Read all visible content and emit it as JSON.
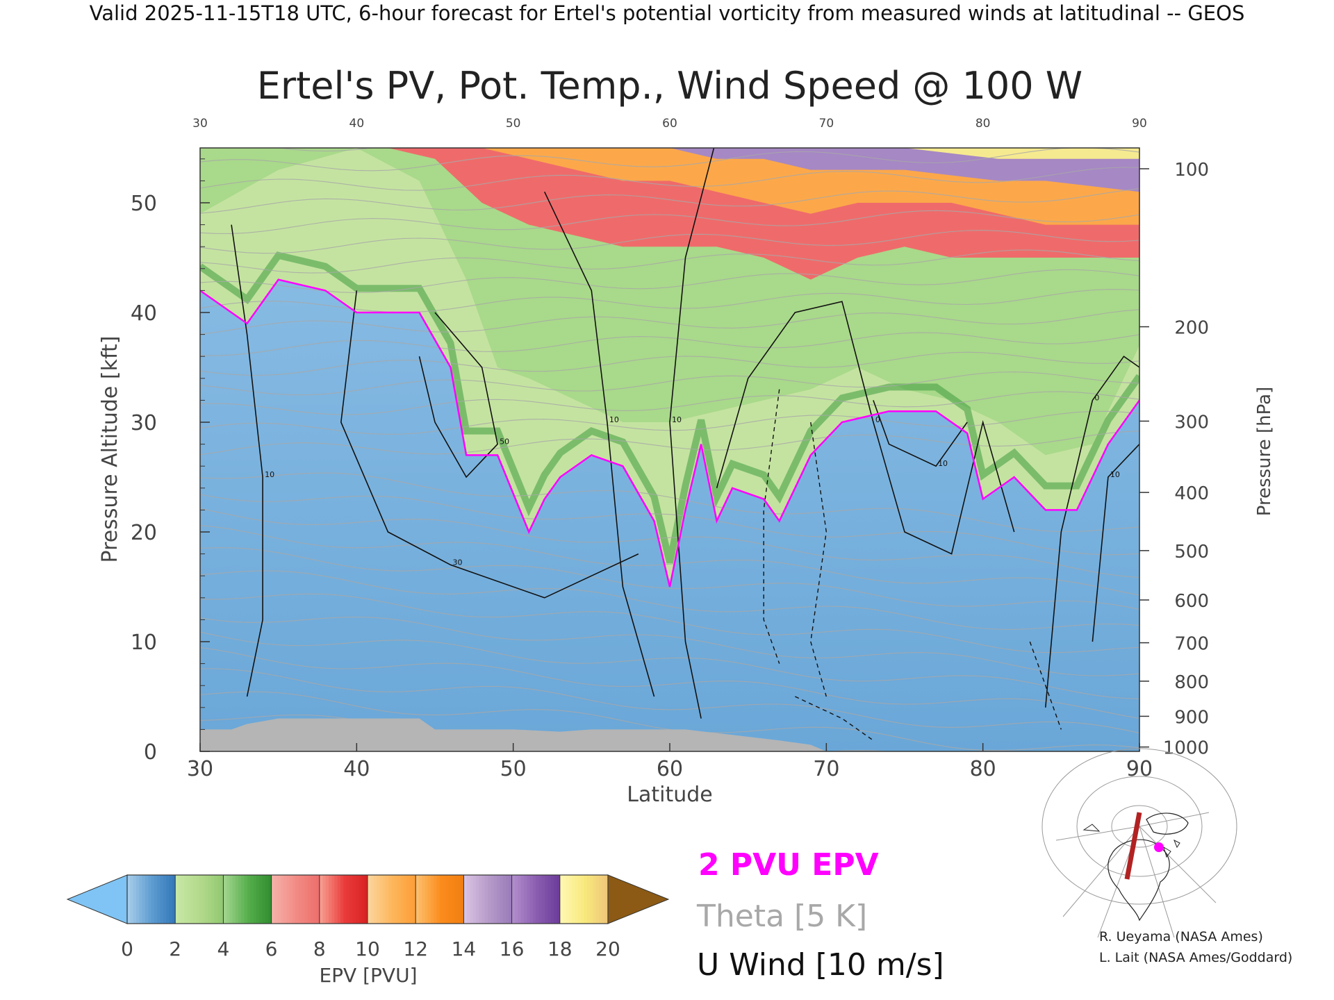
{
  "header": {
    "valid_line": "Valid 2025-11-15T18 UTC, 6-hour forecast for Ertel's potential vorticity from measured winds at latitudinal -- GEOS"
  },
  "chart_data": {
    "type": "heatmap",
    "title": "Ertel's PV, Pot. Temp., Wind Speed @ 100 W",
    "xlabel": "Latitude",
    "ylabel": "Pressure Altitude [kft]",
    "y2label": "Pressure [hPa]",
    "xlim": [
      30,
      90
    ],
    "ylim": [
      0,
      55
    ],
    "x_ticks": [
      30,
      40,
      50,
      60,
      70,
      80,
      90
    ],
    "y_ticks": [
      0,
      10,
      20,
      30,
      40,
      50
    ],
    "pressure_ticks": [
      {
        "hpa": 100,
        "kft": 53.1
      },
      {
        "hpa": 200,
        "kft": 38.7
      },
      {
        "hpa": 300,
        "kft": 30.1
      },
      {
        "hpa": 400,
        "kft": 23.6
      },
      {
        "hpa": 500,
        "kft": 18.3
      },
      {
        "hpa": 600,
        "kft": 13.8
      },
      {
        "hpa": 700,
        "kft": 9.9
      },
      {
        "hpa": 800,
        "kft": 6.4
      },
      {
        "hpa": 900,
        "kft": 3.2
      },
      {
        "hpa": 1000,
        "kft": 0.4
      }
    ],
    "pressure_tick_labels": [
      "100",
      "200",
      "300",
      "400",
      "500",
      "600",
      "700",
      "800",
      "900",
      "1000"
    ],
    "dynamic_tropopause_2pvu_kft": [
      {
        "lat": 30,
        "kft": 42
      },
      {
        "lat": 33,
        "kft": 39
      },
      {
        "lat": 35,
        "kft": 43
      },
      {
        "lat": 38,
        "kft": 42
      },
      {
        "lat": 40,
        "kft": 40
      },
      {
        "lat": 42,
        "kft": 40
      },
      {
        "lat": 44,
        "kft": 40
      },
      {
        "lat": 46,
        "kft": 35
      },
      {
        "lat": 47,
        "kft": 27
      },
      {
        "lat": 49,
        "kft": 27
      },
      {
        "lat": 51,
        "kft": 20
      },
      {
        "lat": 52,
        "kft": 23
      },
      {
        "lat": 53,
        "kft": 25
      },
      {
        "lat": 55,
        "kft": 27
      },
      {
        "lat": 57,
        "kft": 26
      },
      {
        "lat": 59,
        "kft": 21
      },
      {
        "lat": 60,
        "kft": 15
      },
      {
        "lat": 61,
        "kft": 22
      },
      {
        "lat": 62,
        "kft": 28
      },
      {
        "lat": 63,
        "kft": 21
      },
      {
        "lat": 64,
        "kft": 24
      },
      {
        "lat": 66,
        "kft": 23
      },
      {
        "lat": 67,
        "kft": 21
      },
      {
        "lat": 69,
        "kft": 27
      },
      {
        "lat": 71,
        "kft": 30
      },
      {
        "lat": 74,
        "kft": 31
      },
      {
        "lat": 77,
        "kft": 31
      },
      {
        "lat": 79,
        "kft": 29
      },
      {
        "lat": 80,
        "kft": 23
      },
      {
        "lat": 82,
        "kft": 25
      },
      {
        "lat": 84,
        "kft": 22
      },
      {
        "lat": 86,
        "kft": 22
      },
      {
        "lat": 88,
        "kft": 28
      },
      {
        "lat": 90,
        "kft": 32
      }
    ],
    "upper_layer_tops_kft": {
      "green_4_6": [
        {
          "lat": 30,
          "kft": 49
        },
        {
          "lat": 35,
          "kft": 53
        },
        {
          "lat": 40,
          "kft": 55
        },
        {
          "lat": 44,
          "kft": 52
        },
        {
          "lat": 47,
          "kft": 43
        },
        {
          "lat": 49,
          "kft": 35
        },
        {
          "lat": 51,
          "kft": 34
        },
        {
          "lat": 54,
          "kft": 32
        },
        {
          "lat": 57,
          "kft": 30
        },
        {
          "lat": 60,
          "kft": 30
        },
        {
          "lat": 63,
          "kft": 31
        },
        {
          "lat": 66,
          "kft": 32
        },
        {
          "lat": 69,
          "kft": 33
        },
        {
          "lat": 72,
          "kft": 35
        },
        {
          "lat": 75,
          "kft": 33
        },
        {
          "lat": 78,
          "kft": 32
        },
        {
          "lat": 81,
          "kft": 30
        },
        {
          "lat": 84,
          "kft": 27
        },
        {
          "lat": 87,
          "kft": 28
        },
        {
          "lat": 90,
          "kft": 37
        }
      ],
      "red_8_10": [
        {
          "lat": 30,
          "kft": 55
        },
        {
          "lat": 38,
          "kft": 56
        },
        {
          "lat": 42,
          "kft": 55
        },
        {
          "lat": 45,
          "kft": 54
        },
        {
          "lat": 48,
          "kft": 50
        },
        {
          "lat": 51,
          "kft": 48
        },
        {
          "lat": 54,
          "kft": 47
        },
        {
          "lat": 57,
          "kft": 46
        },
        {
          "lat": 60,
          "kft": 46
        },
        {
          "lat": 63,
          "kft": 46
        },
        {
          "lat": 66,
          "kft": 45
        },
        {
          "lat": 69,
          "kft": 43
        },
        {
          "lat": 72,
          "kft": 45
        },
        {
          "lat": 75,
          "kft": 46
        },
        {
          "lat": 78,
          "kft": 45
        },
        {
          "lat": 81,
          "kft": 45
        },
        {
          "lat": 84,
          "kft": 45
        },
        {
          "lat": 87,
          "kft": 45
        },
        {
          "lat": 90,
          "kft": 45
        }
      ],
      "orange_10_14": [
        {
          "lat": 30,
          "kft": 56
        },
        {
          "lat": 45,
          "kft": 56
        },
        {
          "lat": 48,
          "kft": 55
        },
        {
          "lat": 51,
          "kft": 54
        },
        {
          "lat": 54,
          "kft": 53
        },
        {
          "lat": 57,
          "kft": 52
        },
        {
          "lat": 60,
          "kft": 52
        },
        {
          "lat": 63,
          "kft": 51
        },
        {
          "lat": 66,
          "kft": 50
        },
        {
          "lat": 69,
          "kft": 49
        },
        {
          "lat": 72,
          "kft": 50
        },
        {
          "lat": 75,
          "kft": 50
        },
        {
          "lat": 78,
          "kft": 50
        },
        {
          "lat": 81,
          "kft": 49
        },
        {
          "lat": 84,
          "kft": 48
        },
        {
          "lat": 87,
          "kft": 48
        },
        {
          "lat": 90,
          "kft": 48
        }
      ],
      "purple_14_18": [
        {
          "lat": 30,
          "kft": 56
        },
        {
          "lat": 50,
          "kft": 56
        },
        {
          "lat": 53,
          "kft": 55.5
        },
        {
          "lat": 57,
          "kft": 55
        },
        {
          "lat": 60,
          "kft": 55
        },
        {
          "lat": 63,
          "kft": 54
        },
        {
          "lat": 66,
          "kft": 54
        },
        {
          "lat": 69,
          "kft": 53
        },
        {
          "lat": 72,
          "kft": 53
        },
        {
          "lat": 75,
          "kft": 53
        },
        {
          "lat": 78,
          "kft": 52.5
        },
        {
          "lat": 81,
          "kft": 52
        },
        {
          "lat": 84,
          "kft": 52
        },
        {
          "lat": 87,
          "kft": 51.5
        },
        {
          "lat": 90,
          "kft": 51
        }
      ],
      "yellow_18_20": [
        {
          "lat": 30,
          "kft": 56
        },
        {
          "lat": 60,
          "kft": 56
        },
        {
          "lat": 63,
          "kft": 55.5
        },
        {
          "lat": 66,
          "kft": 55
        },
        {
          "lat": 69,
          "kft": 55
        },
        {
          "lat": 72,
          "kft": 55
        },
        {
          "lat": 75,
          "kft": 55
        },
        {
          "lat": 78,
          "kft": 54.5
        },
        {
          "lat": 81,
          "kft": 54
        },
        {
          "lat": 84,
          "kft": 54
        },
        {
          "lat": 87,
          "kft": 54
        },
        {
          "lat": 90,
          "kft": 54
        }
      ],
      "brown_above_20": [
        {
          "lat": 30,
          "kft": 56
        },
        {
          "lat": 62,
          "kft": 56
        },
        {
          "lat": 64,
          "kft": 55.8
        },
        {
          "lat": 67,
          "kft": 55.5
        },
        {
          "lat": 70,
          "kft": 55.5
        },
        {
          "lat": 73,
          "kft": 55.5
        },
        {
          "lat": 76,
          "kft": 55.5
        },
        {
          "lat": 79,
          "kft": 55.5
        },
        {
          "lat": 82,
          "kft": 55.6
        },
        {
          "lat": 85,
          "kft": 55.7
        },
        {
          "lat": 88,
          "kft": 56
        },
        {
          "lat": 90,
          "kft": 56
        }
      ]
    },
    "terrain_kft": [
      {
        "lat": 30,
        "kft": 2
      },
      {
        "lat": 32,
        "kft": 2
      },
      {
        "lat": 33,
        "kft": 2.5
      },
      {
        "lat": 35,
        "kft": 3
      },
      {
        "lat": 40,
        "kft": 3
      },
      {
        "lat": 44,
        "kft": 3
      },
      {
        "lat": 45,
        "kft": 2
      },
      {
        "lat": 50,
        "kft": 2
      },
      {
        "lat": 53,
        "kft": 1.8
      },
      {
        "lat": 55,
        "kft": 2
      },
      {
        "lat": 58,
        "kft": 2
      },
      {
        "lat": 61,
        "kft": 2
      },
      {
        "lat": 64,
        "kft": 1.5
      },
      {
        "lat": 67,
        "kft": 1
      },
      {
        "lat": 69,
        "kft": 0.6
      },
      {
        "lat": 70,
        "kft": 0
      }
    ],
    "u_wind_contours": [
      {
        "label": "10",
        "points": [
          {
            "lat": 32,
            "kft": 48
          },
          {
            "lat": 33,
            "kft": 38
          },
          {
            "lat": 34,
            "kft": 25
          },
          {
            "lat": 34,
            "kft": 12
          },
          {
            "lat": 33,
            "kft": 5
          }
        ]
      },
      {
        "label": "30",
        "points": [
          {
            "lat": 40,
            "kft": 42
          },
          {
            "lat": 39,
            "kft": 30
          },
          {
            "lat": 42,
            "kft": 20
          },
          {
            "lat": 46,
            "kft": 17
          },
          {
            "lat": 52,
            "kft": 14
          },
          {
            "lat": 58,
            "kft": 18
          }
        ]
      },
      {
        "label": "50",
        "points": [
          {
            "lat": 44,
            "kft": 36
          },
          {
            "lat": 45,
            "kft": 30
          },
          {
            "lat": 47,
            "kft": 25
          },
          {
            "lat": 49,
            "kft": 28
          },
          {
            "lat": 48,
            "kft": 35
          },
          {
            "lat": 45,
            "kft": 40
          }
        ]
      },
      {
        "label": "10",
        "points": [
          {
            "lat": 52,
            "kft": 51
          },
          {
            "lat": 55,
            "kft": 42
          },
          {
            "lat": 56,
            "kft": 30
          },
          {
            "lat": 57,
            "kft": 15
          },
          {
            "lat": 59,
            "kft": 5
          }
        ]
      },
      {
        "label": "10",
        "points": [
          {
            "lat": 63,
            "kft": 56
          },
          {
            "lat": 61,
            "kft": 45
          },
          {
            "lat": 60,
            "kft": 30
          },
          {
            "lat": 61,
            "kft": 10
          },
          {
            "lat": 62,
            "kft": 3
          }
        ]
      },
      {
        "label": "0",
        "points": [
          {
            "lat": 63,
            "kft": 24
          },
          {
            "lat": 65,
            "kft": 34
          },
          {
            "lat": 68,
            "kft": 40
          },
          {
            "lat": 71,
            "kft": 41
          },
          {
            "lat": 73,
            "kft": 30
          },
          {
            "lat": 75,
            "kft": 20
          },
          {
            "lat": 78,
            "kft": 18
          },
          {
            "lat": 80,
            "kft": 30
          },
          {
            "lat": 82,
            "kft": 20
          }
        ]
      },
      {
        "label": "10",
        "points": [
          {
            "lat": 73,
            "kft": 32
          },
          {
            "lat": 74,
            "kft": 28
          },
          {
            "lat": 77,
            "kft": 26
          },
          {
            "lat": 79,
            "kft": 30
          }
        ]
      },
      {
        "label": "0",
        "points": [
          {
            "lat": 84,
            "kft": 4
          },
          {
            "lat": 85,
            "kft": 20
          },
          {
            "lat": 87,
            "kft": 32
          },
          {
            "lat": 89,
            "kft": 36
          },
          {
            "lat": 90,
            "kft": 35
          }
        ]
      },
      {
        "label": "10",
        "points": [
          {
            "lat": 87,
            "kft": 10
          },
          {
            "lat": 88,
            "kft": 25
          },
          {
            "lat": 90,
            "kft": 28
          }
        ]
      }
    ],
    "u_wind_negative_contours": [
      {
        "points": [
          {
            "lat": 67,
            "kft": 33
          },
          {
            "lat": 66,
            "kft": 22
          },
          {
            "lat": 66,
            "kft": 12
          },
          {
            "lat": 67,
            "kft": 8
          }
        ]
      },
      {
        "points": [
          {
            "lat": 69,
            "kft": 30
          },
          {
            "lat": 70,
            "kft": 20
          },
          {
            "lat": 69,
            "kft": 10
          },
          {
            "lat": 70,
            "kft": 5
          }
        ]
      },
      {
        "points": [
          {
            "lat": 68,
            "kft": 5
          },
          {
            "lat": 71,
            "kft": 3
          },
          {
            "lat": 73,
            "kft": 1
          }
        ]
      },
      {
        "points": [
          {
            "lat": 83,
            "kft": 10
          },
          {
            "lat": 84,
            "kft": 6
          },
          {
            "lat": 85,
            "kft": 2
          }
        ]
      }
    ],
    "legend": {
      "line_2pvu": "2 PVU EPV",
      "line_theta": "Theta [5 K]",
      "line_uwind": "U Wind [10 m/s]",
      "colors": {
        "pvu2": "#ff00ff",
        "theta": "#a8a8a8",
        "uwind": "#111111"
      }
    },
    "colorbar": {
      "label": "EPV [PVU]",
      "tick_labels": [
        "0",
        "2",
        "4",
        "6",
        "8",
        "10",
        "12",
        "14",
        "16",
        "18",
        "20"
      ],
      "under_color": "#7fc4f4",
      "over_color": "#8c5a14",
      "stops": [
        {
          "pvu": 0,
          "color": "#a4cbe8"
        },
        {
          "pvu": 1,
          "color": "#5b9bd0"
        },
        {
          "pvu": 2,
          "color": "#2f74b8"
        },
        {
          "pvu": 2.01,
          "color": "#c7e7a4"
        },
        {
          "pvu": 3,
          "color": "#b2d98b"
        },
        {
          "pvu": 4,
          "color": "#8ec86e"
        },
        {
          "pvu": 4.01,
          "color": "#9fd38c"
        },
        {
          "pvu": 5,
          "color": "#54ad4a"
        },
        {
          "pvu": 6,
          "color": "#2e8b2e"
        },
        {
          "pvu": 6.01,
          "color": "#f4b0a8"
        },
        {
          "pvu": 7,
          "color": "#f28a84"
        },
        {
          "pvu": 8,
          "color": "#ec6c6a"
        },
        {
          "pvu": 8.01,
          "color": "#f79a8c"
        },
        {
          "pvu": 9,
          "color": "#ea3a3a"
        },
        {
          "pvu": 10,
          "color": "#d62020"
        },
        {
          "pvu": 10.01,
          "color": "#fbd49a"
        },
        {
          "pvu": 11,
          "color": "#fdb55a"
        },
        {
          "pvu": 12,
          "color": "#fd9c34"
        },
        {
          "pvu": 12.01,
          "color": "#fdbd6a"
        },
        {
          "pvu": 13,
          "color": "#fb8c1c"
        },
        {
          "pvu": 14,
          "color": "#f07d10"
        },
        {
          "pvu": 14.01,
          "color": "#d9c2e2"
        },
        {
          "pvu": 15,
          "color": "#b59ac9"
        },
        {
          "pvu": 16,
          "color": "#9878b8"
        },
        {
          "pvu": 16.01,
          "color": "#b08ccc"
        },
        {
          "pvu": 17,
          "color": "#8a5cb0"
        },
        {
          "pvu": 18,
          "color": "#6a3a98"
        },
        {
          "pvu": 18.01,
          "color": "#fff7b0"
        },
        {
          "pvu": 19,
          "color": "#f8e87c"
        },
        {
          "pvu": 20,
          "color": "#eec37a"
        }
      ]
    },
    "inset_map": {
      "transect_color": "#b22222",
      "marker_color": "#ff00ff"
    },
    "credits": [
      "R. Ueyama (NASA Ames)",
      "L. Lait (NASA Ames/Goddard)"
    ]
  }
}
